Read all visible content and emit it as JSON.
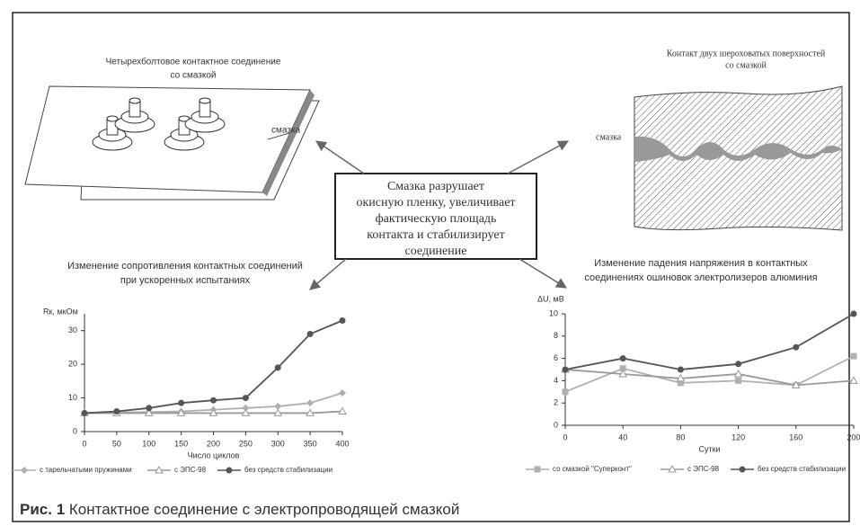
{
  "illustrations": {
    "left": {
      "title": [
        "Четырехболтовое контактное соединение",
        "со смазкой"
      ],
      "label": "смазка"
    },
    "right": {
      "title": [
        "Контакт двух шероховатых поверхностей",
        "со смазкой"
      ],
      "label": "смазка"
    }
  },
  "center_text": [
    "Смазка разрушает",
    "окисную пленку, увеличивает",
    "фактическую площадь",
    "контакта и стабилизирует",
    "соединение"
  ],
  "chart_data": [
    {
      "type": "line",
      "title": [
        "Изменение сопротивления контактных соединений",
        "при ускоренных испытаниях"
      ],
      "y_label": "Rк, мкОм",
      "x_label": "Число циклов",
      "x": [
        0,
        50,
        100,
        150,
        200,
        250,
        300,
        350,
        400
      ],
      "xlim": [
        0,
        400
      ],
      "xticks": [
        0,
        50,
        100,
        150,
        200,
        250,
        300,
        350,
        400
      ],
      "ylim": [
        0,
        35
      ],
      "yticks": [
        0,
        10,
        20,
        30
      ],
      "series": [
        {
          "name": "с тарельчатыми пружинами",
          "color": "#b0b0b0",
          "marker": "diamond",
          "values": [
            5.5,
            5.7,
            5.8,
            6,
            6.5,
            7,
            7.5,
            8.5,
            11.5
          ]
        },
        {
          "name": "с ЭПС-98",
          "color": "#9a9a9a",
          "marker": "triangle",
          "values": [
            5.5,
            5.5,
            5.5,
            5.5,
            5.5,
            5.5,
            5.5,
            5.5,
            6
          ]
        },
        {
          "name": "без средств стабилизации",
          "color": "#555555",
          "marker": "circle",
          "values": [
            5.5,
            6,
            7,
            8.5,
            9.3,
            10,
            19,
            29,
            33
          ]
        }
      ]
    },
    {
      "type": "line",
      "title": [
        "Изменение падения напряжения в контактных",
        "соединениях ошиновок электролизеров алюминия"
      ],
      "y_label": "ΔU, мВ",
      "x_label": "Сутки",
      "x": [
        0,
        40,
        80,
        120,
        160,
        200
      ],
      "xlim": [
        0,
        200
      ],
      "xticks": [
        0,
        40,
        80,
        120,
        160,
        200
      ],
      "ylim": [
        0,
        10
      ],
      "yticks": [
        0,
        2,
        4,
        6,
        8,
        10
      ],
      "series": [
        {
          "name": "со смазкой \"Суперконт\"",
          "color": "#b0b0b0",
          "marker": "square",
          "values": [
            3,
            5.1,
            3.8,
            4,
            3.6,
            6.2
          ]
        },
        {
          "name": "с ЭПС-98",
          "color": "#9a9a9a",
          "marker": "triangle",
          "values": [
            5,
            4.6,
            4.2,
            4.6,
            3.6,
            4
          ]
        },
        {
          "name": "без средств стабилизации",
          "color": "#555555",
          "marker": "circle",
          "values": [
            5,
            6,
            5,
            5.5,
            7,
            10
          ]
        }
      ]
    }
  ],
  "caption": {
    "label": "Рис. 1",
    "text": "Контактное соединение с электропроводящей смазкой"
  }
}
